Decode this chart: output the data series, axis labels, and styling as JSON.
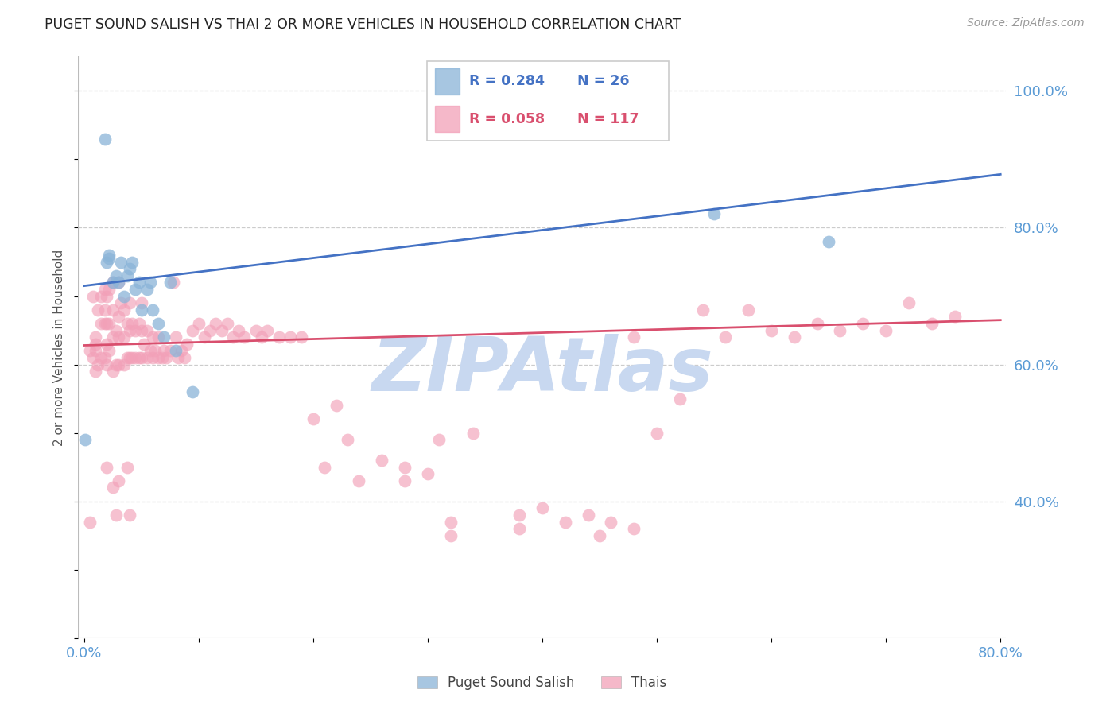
{
  "title": "PUGET SOUND SALISH VS THAI 2 OR MORE VEHICLES IN HOUSEHOLD CORRELATION CHART",
  "source": "Source: ZipAtlas.com",
  "ylabel": "2 or more Vehicles in Household",
  "xlim": [
    0.0,
    0.8
  ],
  "ylim": [
    0.2,
    1.05
  ],
  "xtick_labels": [
    "0.0%",
    "",
    "",
    "",
    "",
    "",
    "",
    "",
    "80.0%"
  ],
  "xtick_vals": [
    0.0,
    0.1,
    0.2,
    0.3,
    0.4,
    0.5,
    0.6,
    0.7,
    0.8
  ],
  "yticks_right": [
    0.4,
    0.6,
    0.8,
    1.0
  ],
  "ytick_labels_right": [
    "40.0%",
    "60.0%",
    "80.0%",
    "100.0%"
  ],
  "salish_color": "#8ab4d8",
  "thai_color": "#f2a0b8",
  "salish_line_color": "#4472c4",
  "thai_line_color": "#d94f6e",
  "tick_color": "#5b9bd5",
  "legend_salish_r": "0.284",
  "legend_salish_n": "26",
  "legend_thai_r": "0.058",
  "legend_thai_n": "117",
  "watermark": "ZIPAtlas",
  "watermark_color": "#c8d8f0",
  "blue_line_y0": 0.715,
  "blue_line_y1": 0.878,
  "pink_line_y0": 0.628,
  "pink_line_y1": 0.665,
  "salish_x": [
    0.001,
    0.018,
    0.02,
    0.022,
    0.022,
    0.025,
    0.028,
    0.03,
    0.032,
    0.035,
    0.038,
    0.04,
    0.042,
    0.045,
    0.048,
    0.05,
    0.055,
    0.058,
    0.06,
    0.065,
    0.07,
    0.075,
    0.08,
    0.095,
    0.55,
    0.65
  ],
  "salish_y": [
    0.49,
    0.93,
    0.75,
    0.755,
    0.76,
    0.72,
    0.73,
    0.72,
    0.75,
    0.7,
    0.73,
    0.74,
    0.75,
    0.71,
    0.72,
    0.68,
    0.71,
    0.72,
    0.68,
    0.66,
    0.64,
    0.72,
    0.62,
    0.56,
    0.82,
    0.78
  ],
  "thai_x": [
    0.005,
    0.008,
    0.008,
    0.01,
    0.01,
    0.01,
    0.01,
    0.012,
    0.012,
    0.015,
    0.015,
    0.015,
    0.018,
    0.018,
    0.018,
    0.018,
    0.02,
    0.02,
    0.02,
    0.02,
    0.022,
    0.022,
    0.022,
    0.025,
    0.025,
    0.025,
    0.025,
    0.028,
    0.028,
    0.03,
    0.03,
    0.03,
    0.03,
    0.032,
    0.035,
    0.035,
    0.035,
    0.038,
    0.038,
    0.04,
    0.04,
    0.04,
    0.042,
    0.042,
    0.045,
    0.045,
    0.048,
    0.048,
    0.05,
    0.05,
    0.05,
    0.052,
    0.055,
    0.055,
    0.058,
    0.06,
    0.06,
    0.062,
    0.065,
    0.065,
    0.068,
    0.07,
    0.072,
    0.075,
    0.078,
    0.08,
    0.082,
    0.085,
    0.088,
    0.09,
    0.095,
    0.1,
    0.105,
    0.11,
    0.115,
    0.12,
    0.125,
    0.13,
    0.135,
    0.14,
    0.15,
    0.155,
    0.16,
    0.17,
    0.18,
    0.19,
    0.2,
    0.21,
    0.22,
    0.23,
    0.24,
    0.26,
    0.28,
    0.3,
    0.31,
    0.32,
    0.34,
    0.38,
    0.4,
    0.42,
    0.44,
    0.46,
    0.48,
    0.5,
    0.52,
    0.54,
    0.56,
    0.58,
    0.6,
    0.62,
    0.64,
    0.66,
    0.68,
    0.7,
    0.72,
    0.74,
    0.76
  ],
  "thai_y": [
    0.62,
    0.61,
    0.7,
    0.59,
    0.64,
    0.62,
    0.63,
    0.6,
    0.68,
    0.61,
    0.66,
    0.7,
    0.61,
    0.66,
    0.68,
    0.71,
    0.6,
    0.63,
    0.66,
    0.7,
    0.62,
    0.66,
    0.71,
    0.59,
    0.64,
    0.68,
    0.72,
    0.6,
    0.65,
    0.6,
    0.64,
    0.67,
    0.72,
    0.69,
    0.6,
    0.64,
    0.68,
    0.61,
    0.66,
    0.61,
    0.65,
    0.69,
    0.61,
    0.66,
    0.61,
    0.65,
    0.61,
    0.66,
    0.61,
    0.65,
    0.69,
    0.63,
    0.61,
    0.65,
    0.62,
    0.61,
    0.64,
    0.62,
    0.61,
    0.64,
    0.61,
    0.62,
    0.61,
    0.62,
    0.72,
    0.64,
    0.61,
    0.62,
    0.61,
    0.63,
    0.65,
    0.66,
    0.64,
    0.65,
    0.66,
    0.65,
    0.66,
    0.64,
    0.65,
    0.64,
    0.65,
    0.64,
    0.65,
    0.64,
    0.64,
    0.64,
    0.52,
    0.45,
    0.54,
    0.49,
    0.43,
    0.46,
    0.45,
    0.44,
    0.49,
    0.37,
    0.5,
    0.38,
    0.39,
    0.37,
    0.38,
    0.37,
    0.64,
    0.5,
    0.55,
    0.68,
    0.64,
    0.68,
    0.65,
    0.64,
    0.66,
    0.65,
    0.66,
    0.65,
    0.69,
    0.66,
    0.67
  ],
  "thai_outlier_low_x": [
    0.005,
    0.02,
    0.025,
    0.028,
    0.03,
    0.038,
    0.04,
    0.28,
    0.32,
    0.38,
    0.45,
    0.48
  ],
  "thai_outlier_low_y": [
    0.37,
    0.45,
    0.42,
    0.38,
    0.43,
    0.45,
    0.38,
    0.43,
    0.35,
    0.36,
    0.35,
    0.36
  ]
}
